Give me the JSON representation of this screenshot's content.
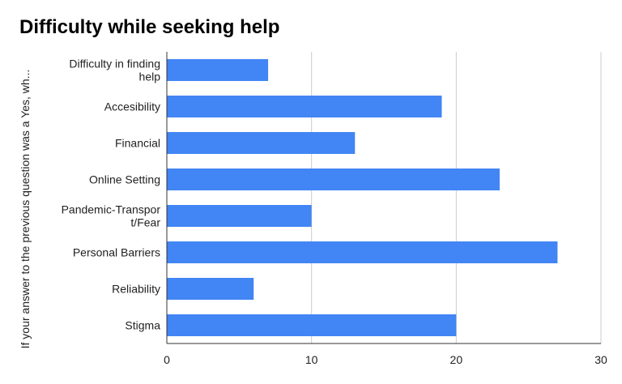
{
  "chart_data": {
    "type": "bar",
    "orientation": "horizontal",
    "title": "Difficulty while seeking help",
    "ylabel": "If your answer to the previous question was a Yes, wh...",
    "xlabel": "",
    "categories": [
      [
        "Difficulty in finding",
        "help"
      ],
      [
        "Accesibility"
      ],
      [
        "Financial"
      ],
      [
        "Online Setting"
      ],
      [
        "Pandemic-Transpor",
        "t/Fear"
      ],
      [
        "Personal Barriers"
      ],
      [
        "Reliability"
      ],
      [
        "Stigma"
      ]
    ],
    "values": [
      7,
      19,
      13,
      23,
      10,
      27,
      6,
      20
    ],
    "xlim": [
      0,
      30
    ],
    "xticks": [
      0,
      10,
      20,
      30
    ],
    "grid": true,
    "legend": "none",
    "bar_color": "#4285f4",
    "grid_color": "#cccccc",
    "axis_color": "#333333"
  }
}
